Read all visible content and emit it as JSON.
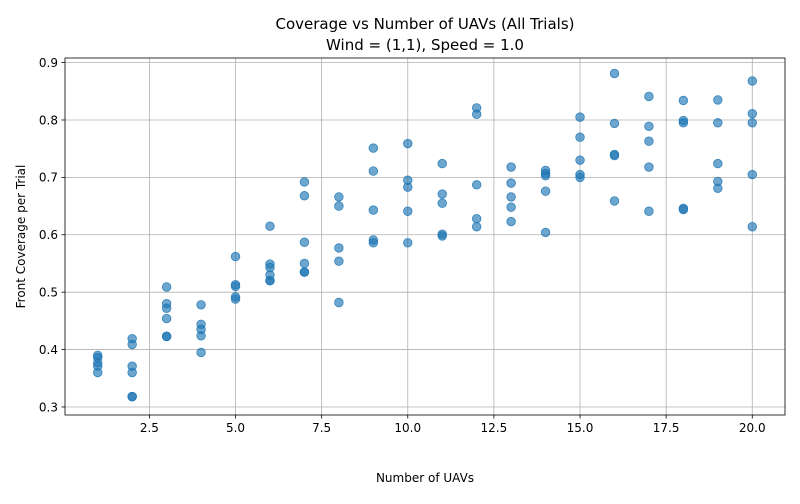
{
  "chart_data": {
    "type": "scatter",
    "title_line1": "Coverage vs Number of UAVs (All Trials)",
    "title_line2": "Wind = (1,1), Speed = 1.0",
    "xlabel": "Number of UAVs",
    "ylabel": "Front Coverage per Trial",
    "xlim": [
      0.05,
      20.95
    ],
    "ylim": [
      0.286,
      0.908
    ],
    "xticks": [
      2.5,
      5.0,
      7.5,
      10.0,
      12.5,
      15.0,
      17.5,
      20.0
    ],
    "xtick_labels": [
      "2.5",
      "5.0",
      "7.5",
      "10.0",
      "12.5",
      "15.0",
      "17.5",
      "20.0"
    ],
    "yticks": [
      0.3,
      0.4,
      0.5,
      0.6,
      0.7,
      0.8,
      0.9
    ],
    "ytick_labels": [
      "0.3",
      "0.4",
      "0.5",
      "0.6",
      "0.7",
      "0.8",
      "0.9"
    ],
    "grid": true,
    "legend": "none",
    "colors": {
      "points": "#1f77b4",
      "grid": "#b0b0b0",
      "axes": "#000000"
    },
    "x": [
      1,
      1,
      1,
      1,
      1,
      2,
      2,
      2,
      2,
      2,
      2,
      3,
      3,
      3,
      3,
      3,
      3,
      4,
      4,
      4,
      4,
      4,
      5,
      5,
      5,
      5,
      5,
      6,
      6,
      6,
      6,
      6,
      6,
      7,
      7,
      7,
      7,
      7,
      7,
      8,
      8,
      8,
      8,
      8,
      9,
      9,
      9,
      9,
      9,
      10,
      10,
      10,
      10,
      10,
      11,
      11,
      11,
      11,
      11,
      12,
      12,
      12,
      12,
      12,
      13,
      13,
      13,
      13,
      13,
      14,
      14,
      14,
      14,
      14,
      15,
      15,
      15,
      15,
      15,
      16,
      16,
      16,
      16,
      16,
      17,
      17,
      17,
      17,
      17,
      18,
      18,
      18,
      18,
      18,
      19,
      19,
      19,
      19,
      19,
      20,
      20,
      20,
      20,
      20
    ],
    "y": [
      0.39,
      0.386,
      0.377,
      0.371,
      0.36,
      0.419,
      0.409,
      0.371,
      0.36,
      0.318,
      0.318,
      0.509,
      0.48,
      0.472,
      0.454,
      0.423,
      0.423,
      0.478,
      0.444,
      0.435,
      0.424,
      0.395,
      0.562,
      0.513,
      0.51,
      0.492,
      0.488,
      0.615,
      0.549,
      0.543,
      0.53,
      0.52,
      0.52,
      0.692,
      0.668,
      0.587,
      0.55,
      0.535,
      0.535,
      0.666,
      0.65,
      0.577,
      0.554,
      0.482,
      0.751,
      0.711,
      0.643,
      0.591,
      0.586,
      0.759,
      0.695,
      0.683,
      0.641,
      0.586,
      0.724,
      0.671,
      0.655,
      0.601,
      0.598,
      0.821,
      0.81,
      0.687,
      0.628,
      0.614,
      0.718,
      0.69,
      0.666,
      0.648,
      0.623,
      0.712,
      0.707,
      0.703,
      0.676,
      0.604,
      0.805,
      0.77,
      0.73,
      0.705,
      0.7,
      0.881,
      0.794,
      0.74,
      0.738,
      0.659,
      0.841,
      0.789,
      0.763,
      0.718,
      0.641,
      0.834,
      0.799,
      0.795,
      0.646,
      0.644,
      0.835,
      0.795,
      0.724,
      0.693,
      0.681,
      0.868,
      0.811,
      0.795,
      0.705,
      0.614
    ]
  }
}
